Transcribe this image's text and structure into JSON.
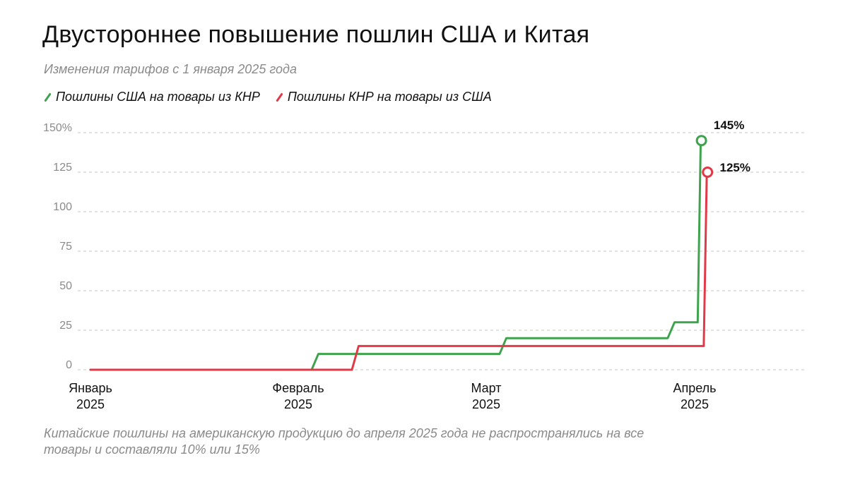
{
  "title": "Двустороннее повышение пошлин США и Китая",
  "subtitle": "Изменения тарифов с 1 января 2025 года",
  "legend": [
    {
      "label": "Пошлины США на товары из КНР",
      "color": "#3fa34d"
    },
    {
      "label": "Пошлины КНР на товары из США",
      "color": "#e03a48"
    }
  ],
  "note": "Китайские пошлины на американскую продукцию до апреля 2025 года не распространялись на все товары и составляли 10% или 15%",
  "chart_data": {
    "type": "line",
    "x_axis": {
      "type": "date",
      "range": [
        "2025-01-01",
        "2025-04-30"
      ],
      "ticks": [
        {
          "date": "2025-01-01",
          "label": [
            "Январь",
            "2025"
          ]
        },
        {
          "date": "2025-02-01",
          "label": [
            "Февраль",
            "2025"
          ]
        },
        {
          "date": "2025-03-01",
          "label": [
            "Март",
            "2025"
          ]
        },
        {
          "date": "2025-04-01",
          "label": [
            "Апрель",
            "2025"
          ]
        }
      ]
    },
    "y_axis": {
      "range": [
        0,
        150
      ],
      "ticks": [
        {
          "value": 0,
          "label": "0"
        },
        {
          "value": 25,
          "label": "25"
        },
        {
          "value": 50,
          "label": "50"
        },
        {
          "value": 75,
          "label": "75"
        },
        {
          "value": 100,
          "label": "100"
        },
        {
          "value": 125,
          "label": "125"
        },
        {
          "value": 150,
          "label": "150%"
        }
      ],
      "grid": "dashed"
    },
    "series": [
      {
        "name": "Пошлины США на товары из КНР",
        "color": "#3fa34d",
        "end_label": "145%",
        "points": [
          {
            "x": "2025-01-01",
            "y": 0
          },
          {
            "x": "2025-02-03",
            "y": 0
          },
          {
            "x": "2025-02-04",
            "y": 10
          },
          {
            "x": "2025-03-03",
            "y": 10
          },
          {
            "x": "2025-03-04",
            "y": 20
          },
          {
            "x": "2025-03-28",
            "y": 20
          },
          {
            "x": "2025-03-29",
            "y": 30
          },
          {
            "x": "2025-04-02",
            "y": 30
          },
          {
            "x": "2025-04-03",
            "y": 145
          }
        ]
      },
      {
        "name": "Пошлины КНР на товары из США",
        "color": "#e03a48",
        "end_label": "125%",
        "points": [
          {
            "x": "2025-01-01",
            "y": 0
          },
          {
            "x": "2025-02-09",
            "y": 0
          },
          {
            "x": "2025-02-10",
            "y": 15
          },
          {
            "x": "2025-04-04",
            "y": 15
          },
          {
            "x": "2025-04-05",
            "y": 125
          }
        ]
      }
    ]
  }
}
